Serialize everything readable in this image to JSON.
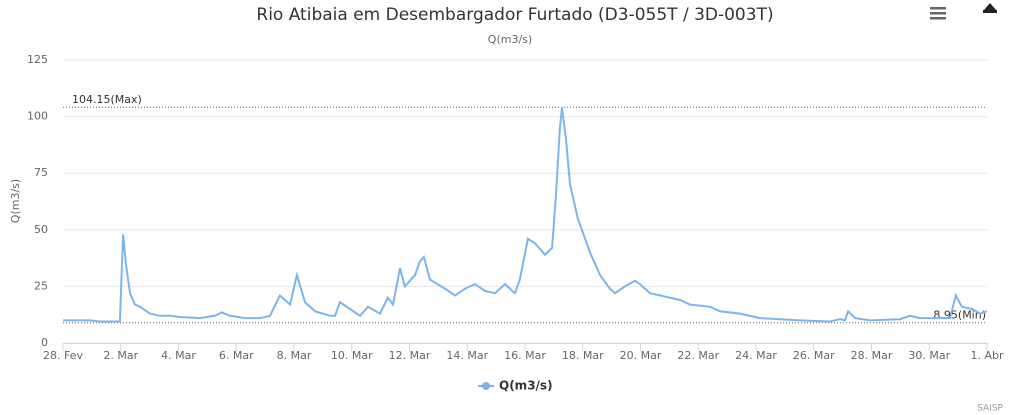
{
  "chart_data": {
    "type": "line",
    "title": "Rio Atibaia em Desembargador Furtado (D3-055T / 3D-003T)",
    "subtitle": "Q(m3/s)",
    "y_label": "Q(m3/s)",
    "credits": "SAISP",
    "grid": true,
    "xlim": [
      0,
      32
    ],
    "xticks": [
      {
        "value": 0,
        "label": "28. Fev"
      },
      {
        "value": 2,
        "label": "2. Mar"
      },
      {
        "value": 4,
        "label": "4. Mar"
      },
      {
        "value": 6,
        "label": "6. Mar"
      },
      {
        "value": 8,
        "label": "8. Mar"
      },
      {
        "value": 10,
        "label": "10. Mar"
      },
      {
        "value": 12,
        "label": "12. Mar"
      },
      {
        "value": 14,
        "label": "14. Mar"
      },
      {
        "value": 16,
        "label": "16. Mar"
      },
      {
        "value": 18,
        "label": "18. Mar"
      },
      {
        "value": 20,
        "label": "20. Mar"
      },
      {
        "value": 22,
        "label": "22. Mar"
      },
      {
        "value": 24,
        "label": "24. Mar"
      },
      {
        "value": 26,
        "label": "26. Mar"
      },
      {
        "value": 28,
        "label": "28. Mar"
      },
      {
        "value": 30,
        "label": "30. Mar"
      },
      {
        "value": 32,
        "label": "1. Abr"
      }
    ],
    "ylim": [
      0,
      125
    ],
    "yticks": [
      0,
      25,
      50,
      75,
      100,
      125
    ],
    "plot_lines": [
      {
        "value": 104.15,
        "label": "104.15(Max)"
      },
      {
        "value": 8.95,
        "label": "8.95(Min)"
      }
    ],
    "x": [
      0,
      0.94,
      1.28,
      1.97,
      2.08,
      2.18,
      2.32,
      2.49,
      2.67,
      3.01,
      3.36,
      3.71,
      4.05,
      4.74,
      5.26,
      5.5,
      5.78,
      6.3,
      6.82,
      7.17,
      7.51,
      7.86,
      8.1,
      8.38,
      8.73,
      9.25,
      9.42,
      9.59,
      9.94,
      10.29,
      10.56,
      10.98,
      11.25,
      11.43,
      11.67,
      11.84,
      12.19,
      12.36,
      12.5,
      12.71,
      13.23,
      13.58,
      13.92,
      14.27,
      14.61,
      14.96,
      15.31,
      15.65,
      15.82,
      16.1,
      16.35,
      16.69,
      16.94,
      17.07,
      17.21,
      17.28,
      17.42,
      17.56,
      17.83,
      18.25,
      18.6,
      18.94,
      19.12,
      19.46,
      19.81,
      19.98,
      20.33,
      21.02,
      21.37,
      21.71,
      22.41,
      22.75,
      23.45,
      24.14,
      25.52,
      26.56,
      26.91,
      27.08,
      27.19,
      27.43,
      27.95,
      28.99,
      29.33,
      29.68,
      30.72,
      30.92,
      31.13,
      31.48,
      31.76,
      32
    ],
    "series": [
      {
        "name": "Q(m3/s)",
        "color": "#7cb5ec",
        "values": [
          10,
          10,
          9.5,
          9.5,
          48,
          35,
          22,
          17,
          16,
          13,
          12,
          12,
          11.5,
          11,
          12,
          13.5,
          12,
          11,
          11,
          12,
          21,
          17,
          30,
          18,
          14,
          12,
          12,
          18,
          15,
          12,
          16,
          13,
          20,
          17,
          33,
          25,
          30,
          36,
          38,
          28,
          24,
          21,
          24,
          26,
          23,
          22,
          26,
          22,
          28,
          46,
          44,
          39,
          42,
          65,
          95,
          104,
          90,
          70,
          55,
          40,
          30,
          24,
          22,
          25,
          27.5,
          26,
          22,
          20,
          19,
          17,
          16,
          14,
          13,
          11,
          10,
          9.5,
          10.5,
          10,
          14,
          11,
          10,
          10.5,
          12,
          11,
          11,
          21,
          16,
          15,
          13,
          14
        ]
      }
    ]
  }
}
